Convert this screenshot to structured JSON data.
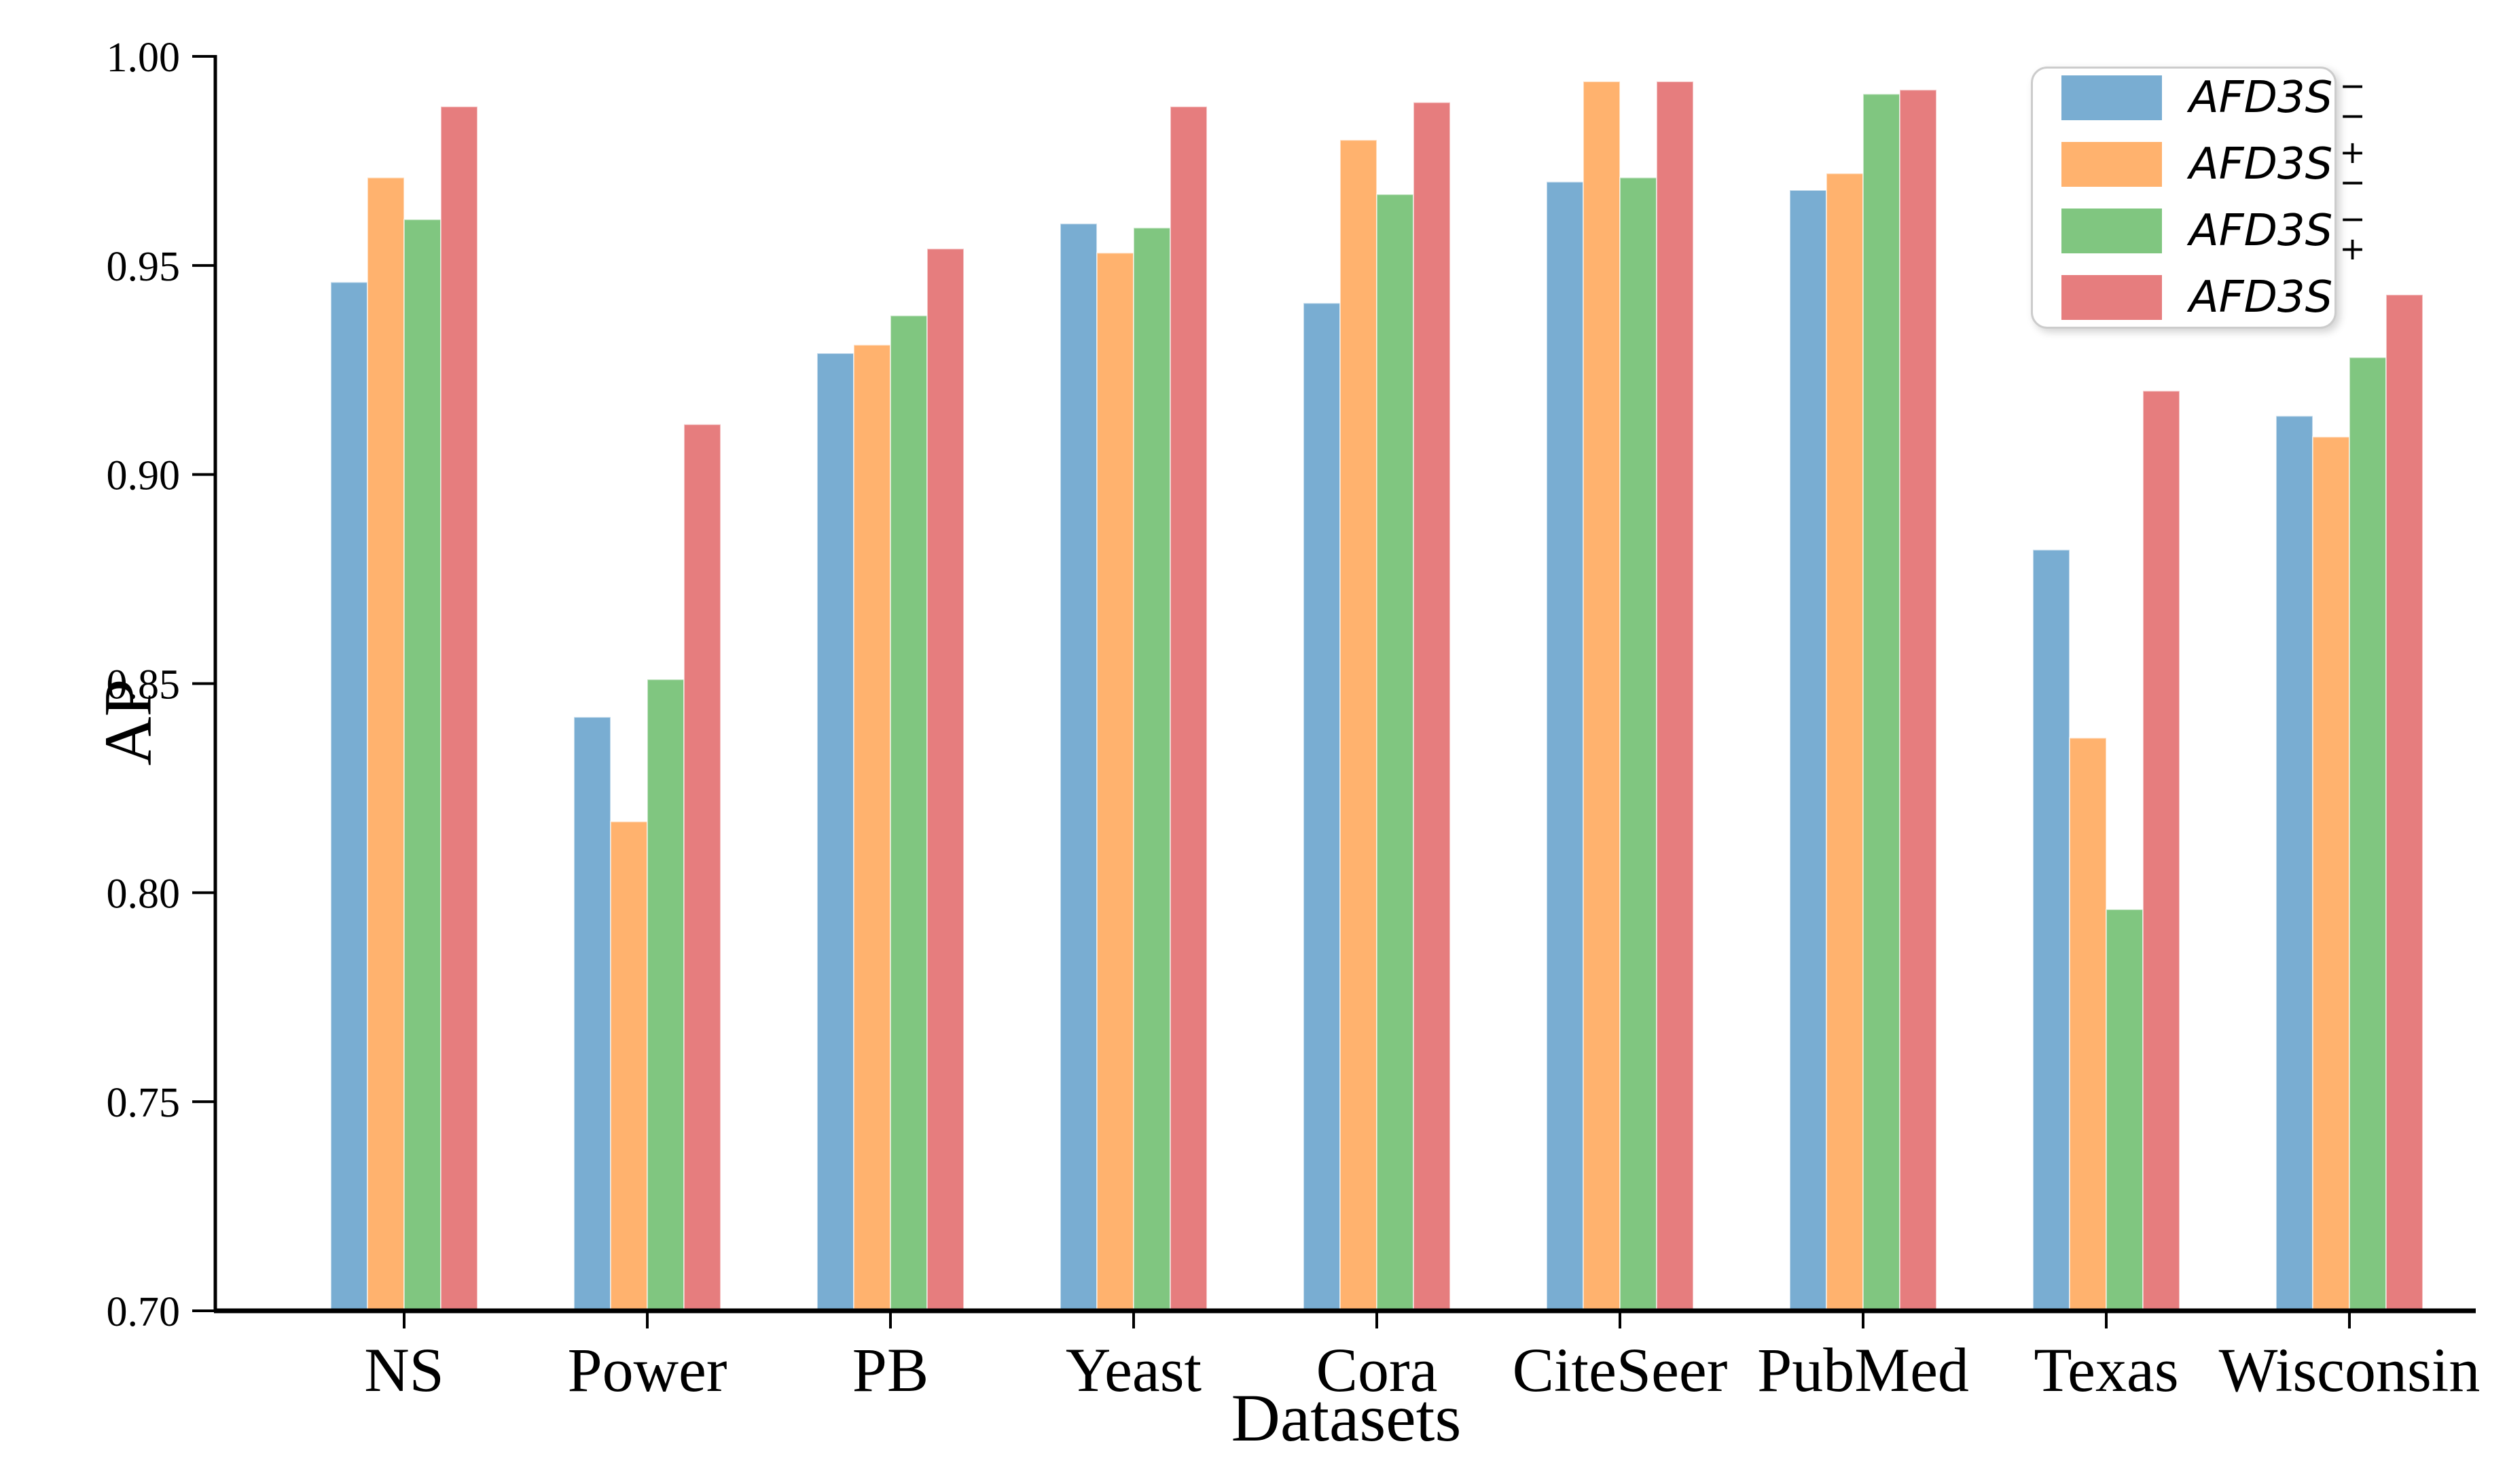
{
  "chart_data": {
    "type": "bar",
    "title": "",
    "xlabel": "Datasets",
    "ylabel": "AP",
    "ylim": [
      0.7,
      1.0
    ],
    "ytick_step": 0.05,
    "ytick_labels": [
      "0.70",
      "0.75",
      "0.80",
      "0.85",
      "0.90",
      "0.95",
      "1.00"
    ],
    "grid": false,
    "legend_position": "upper right",
    "categories": [
      "NS",
      "Power",
      "PB",
      "Yeast",
      "Cora",
      "CiteSeer",
      "PubMed",
      "Texas",
      "Wisconsin"
    ],
    "series": [
      {
        "name": "AFD3S",
        "sup": "−",
        "sub": "−",
        "color": "#79add2",
        "values": [
          0.946,
          0.842,
          0.929,
          0.96,
          0.941,
          0.97,
          0.968,
          0.882,
          0.914
        ]
      },
      {
        "name": "AFD3S",
        "sup": "+",
        "sub": "−",
        "color": "#ffb26e",
        "values": [
          0.971,
          0.817,
          0.931,
          0.953,
          0.98,
          0.994,
          0.972,
          0.837,
          0.909
        ]
      },
      {
        "name": "AFD3S",
        "sup": "−",
        "sub": "+",
        "color": "#80c680",
        "values": [
          0.961,
          0.851,
          0.938,
          0.959,
          0.967,
          0.971,
          0.991,
          0.796,
          0.928
        ]
      },
      {
        "name": "AFD3S",
        "sup": "",
        "sub": "",
        "color": "#e67d7e",
        "values": [
          0.988,
          0.912,
          0.954,
          0.988,
          0.989,
          0.994,
          0.992,
          0.92,
          0.943
        ]
      }
    ]
  }
}
